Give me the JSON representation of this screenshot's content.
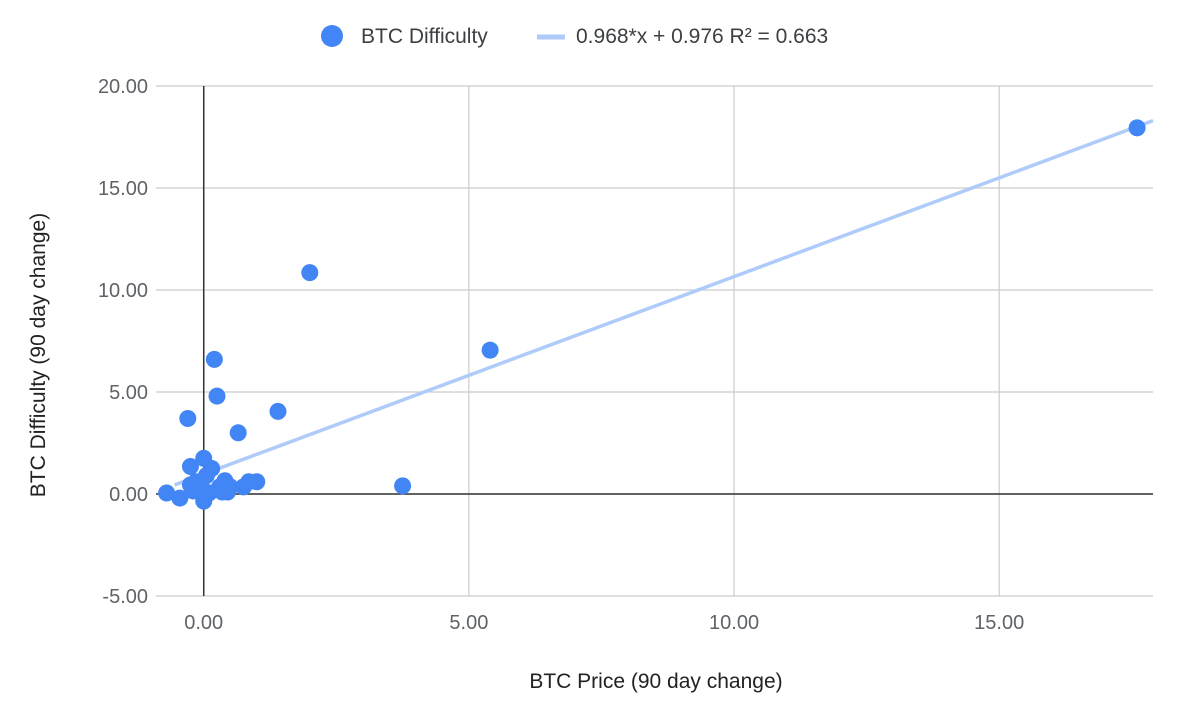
{
  "chart_data": {
    "type": "scatter",
    "xlabel": "BTC Price (90 day change)",
    "ylabel": "BTC Difficulty (90 day change)",
    "xlim": [
      -0.9,
      17.9
    ],
    "ylim": [
      -5,
      20
    ],
    "xticks": [
      0,
      5,
      10,
      15
    ],
    "yticks": [
      -5,
      0,
      5,
      10,
      15,
      20
    ],
    "tick_labels_x": [
      "0.00",
      "5.00",
      "10.00",
      "15.00"
    ],
    "tick_labels_y": [
      "-5.00",
      "0.00",
      "5.00",
      "10.00",
      "15.00",
      "20.00"
    ],
    "grid": true,
    "legend_position": "top",
    "series": [
      {
        "name": "BTC Difficulty",
        "color": "#4285f4",
        "points": [
          [
            -0.7,
            0.05
          ],
          [
            -0.45,
            -0.2
          ],
          [
            -0.25,
            0.45
          ],
          [
            -0.2,
            0.15
          ],
          [
            -0.15,
            0.6
          ],
          [
            -0.3,
            3.7
          ],
          [
            -0.25,
            1.35
          ],
          [
            -0.05,
            0.4
          ],
          [
            0.0,
            1.75
          ],
          [
            0.0,
            -0.35
          ],
          [
            0.05,
            0.9
          ],
          [
            0.1,
            0.05
          ],
          [
            0.15,
            1.25
          ],
          [
            0.2,
            6.6
          ],
          [
            0.25,
            4.8
          ],
          [
            0.3,
            0.35
          ],
          [
            0.35,
            0.1
          ],
          [
            0.4,
            0.65
          ],
          [
            0.45,
            0.1
          ],
          [
            0.5,
            0.35
          ],
          [
            0.65,
            3.0
          ],
          [
            0.75,
            0.35
          ],
          [
            0.85,
            0.6
          ],
          [
            1.0,
            0.6
          ],
          [
            1.4,
            4.05
          ],
          [
            2.0,
            10.85
          ],
          [
            3.75,
            0.4
          ],
          [
            5.4,
            7.05
          ],
          [
            17.6,
            17.95
          ]
        ]
      }
    ],
    "trendline": {
      "label": "0.968*x + 0.976 R² = 0.663",
      "slope": 0.968,
      "intercept": 0.976,
      "color": "#aecbfa"
    }
  }
}
